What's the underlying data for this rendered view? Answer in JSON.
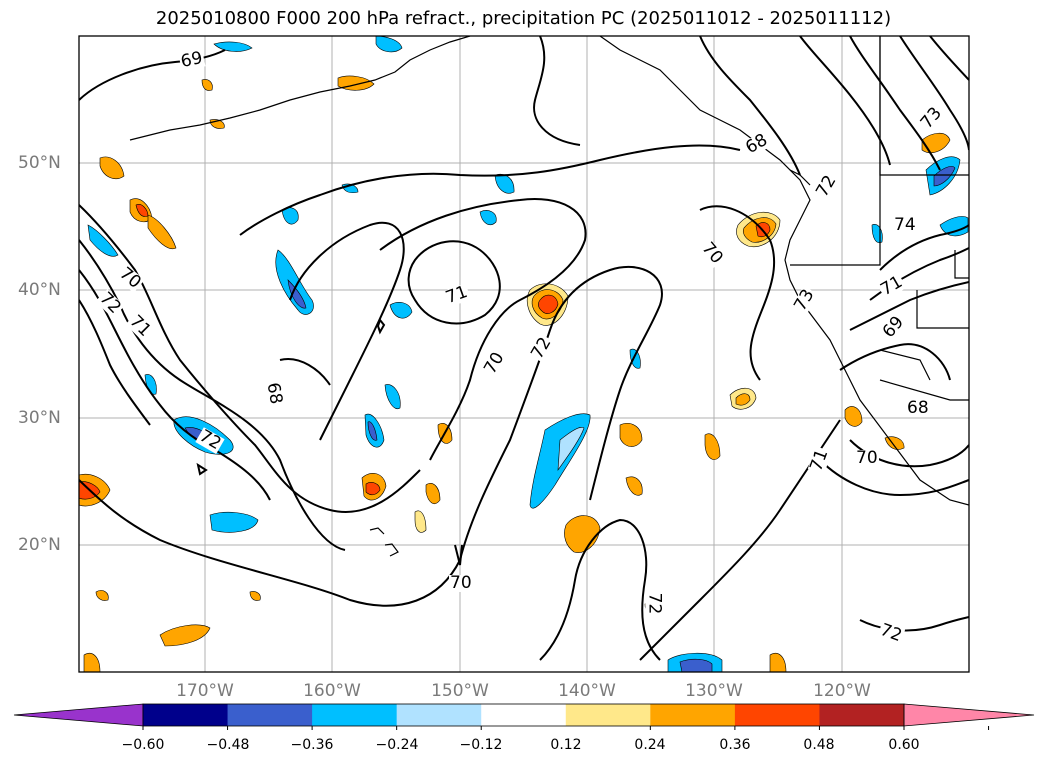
{
  "title": "2025010800 F000 200 hPa refract., precipitation PC (2025011012 - 2025011112)",
  "lat_labels": [
    "50°N",
    "40°N",
    "30°N",
    "20°N"
  ],
  "lon_labels": [
    "170°W",
    "160°W",
    "150°W",
    "140°W",
    "130°W",
    "120°W"
  ],
  "contour_labels": [
    "69",
    "70",
    "72",
    "71",
    "72",
    "68",
    "71",
    "70",
    "72",
    "70",
    "71",
    "68",
    "72",
    "73",
    "74",
    "71",
    "73",
    "69",
    "68",
    "72",
    "70",
    "70",
    "72"
  ],
  "colorbar": {
    "tick_labels": [
      "−0.60",
      "−0.48",
      "−0.36",
      "−0.24",
      "−0.12",
      "0.12",
      "0.24",
      "0.36",
      "0.48",
      "0.60"
    ],
    "colors": [
      "#9933cc",
      "#00008b",
      "#3a5fcd",
      "#00bfff",
      "#b0e2ff",
      "#ffffff",
      "#ffe88a",
      "#ffa500",
      "#ff4500",
      "#b22222",
      "#ff86a8"
    ]
  },
  "colors": {
    "contour": "#000000",
    "grid": "#b0b0b0",
    "coast": "#000000",
    "axis_labels": "#7a7a7a"
  }
}
